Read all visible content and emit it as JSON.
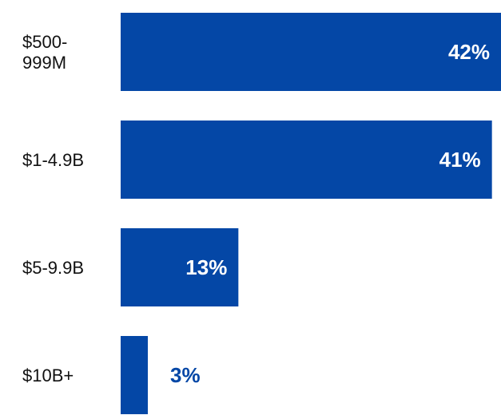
{
  "colors": {
    "bar": "#0447a6",
    "label_on_bar": "#ffffff",
    "label_off_bar": "#0447a6",
    "category_text": "#111111"
  },
  "chart_data": {
    "type": "bar",
    "orientation": "horizontal",
    "categories": [
      "$500-999M",
      "$1-4.9B",
      "$5-9.9B",
      "$10B+"
    ],
    "category_lines": [
      [
        "$500-",
        "999M"
      ],
      [
        "$1-4.9B"
      ],
      [
        "$5-9.9B"
      ],
      [
        "$10B+"
      ]
    ],
    "values": [
      42,
      41,
      13,
      3
    ],
    "value_labels": [
      "42%",
      "41%",
      "13%",
      "3%"
    ],
    "xlim": [
      0,
      42
    ],
    "grid": false,
    "legend": "none",
    "title": "",
    "xlabel": "",
    "ylabel": ""
  }
}
